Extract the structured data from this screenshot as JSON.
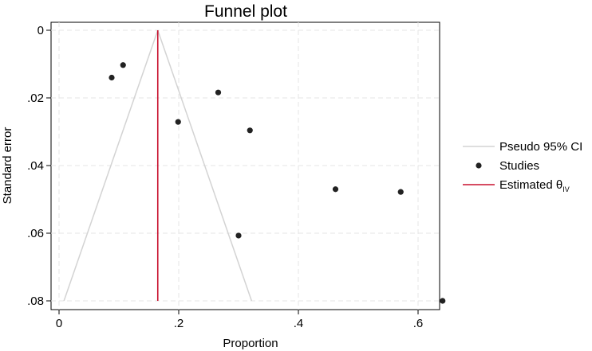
{
  "chart_data": {
    "type": "scatter",
    "title": "Funnel plot",
    "xlabel": "Proportion",
    "ylabel": "Standard error",
    "xlim": [
      -0.005,
      0.645
    ],
    "ylim": [
      0,
      0.08
    ],
    "y_reversed": true,
    "grid": true,
    "legend_position": "right",
    "x_ticks": [
      {
        "value": 0,
        "label": "0"
      },
      {
        "value": 0.2,
        "label": ".2"
      },
      {
        "value": 0.4,
        "label": ".4"
      },
      {
        "value": 0.6,
        "label": ".6"
      }
    ],
    "y_ticks": [
      {
        "value": 0,
        "label": "0"
      },
      {
        "value": 0.02,
        "label": ".02"
      },
      {
        "value": 0.04,
        "label": ".04"
      },
      {
        "value": 0.06,
        "label": ".06"
      },
      {
        "value": 0.08,
        "label": ".08"
      }
    ],
    "studies": {
      "name": "Studies",
      "color": "#222222",
      "points": [
        {
          "x": 0.088,
          "y": 0.014
        },
        {
          "x": 0.107,
          "y": 0.0103
        },
        {
          "x": 0.199,
          "y": 0.0271
        },
        {
          "x": 0.266,
          "y": 0.0184
        },
        {
          "x": 0.319,
          "y": 0.0296
        },
        {
          "x": 0.3,
          "y": 0.0607
        },
        {
          "x": 0.462,
          "y": 0.047
        },
        {
          "x": 0.571,
          "y": 0.0478
        },
        {
          "x": 0.641,
          "y": 0.08
        }
      ]
    },
    "estimate": {
      "name_main": "Estimated θ",
      "name_sub": "IV",
      "value": 0.165,
      "color": "#c8102e"
    },
    "pseudo_ci": {
      "name": "Pseudo 95% CI",
      "center": 0.165,
      "se_max": 0.08,
      "z": 1.96,
      "color": "#d3d3d3"
    }
  }
}
